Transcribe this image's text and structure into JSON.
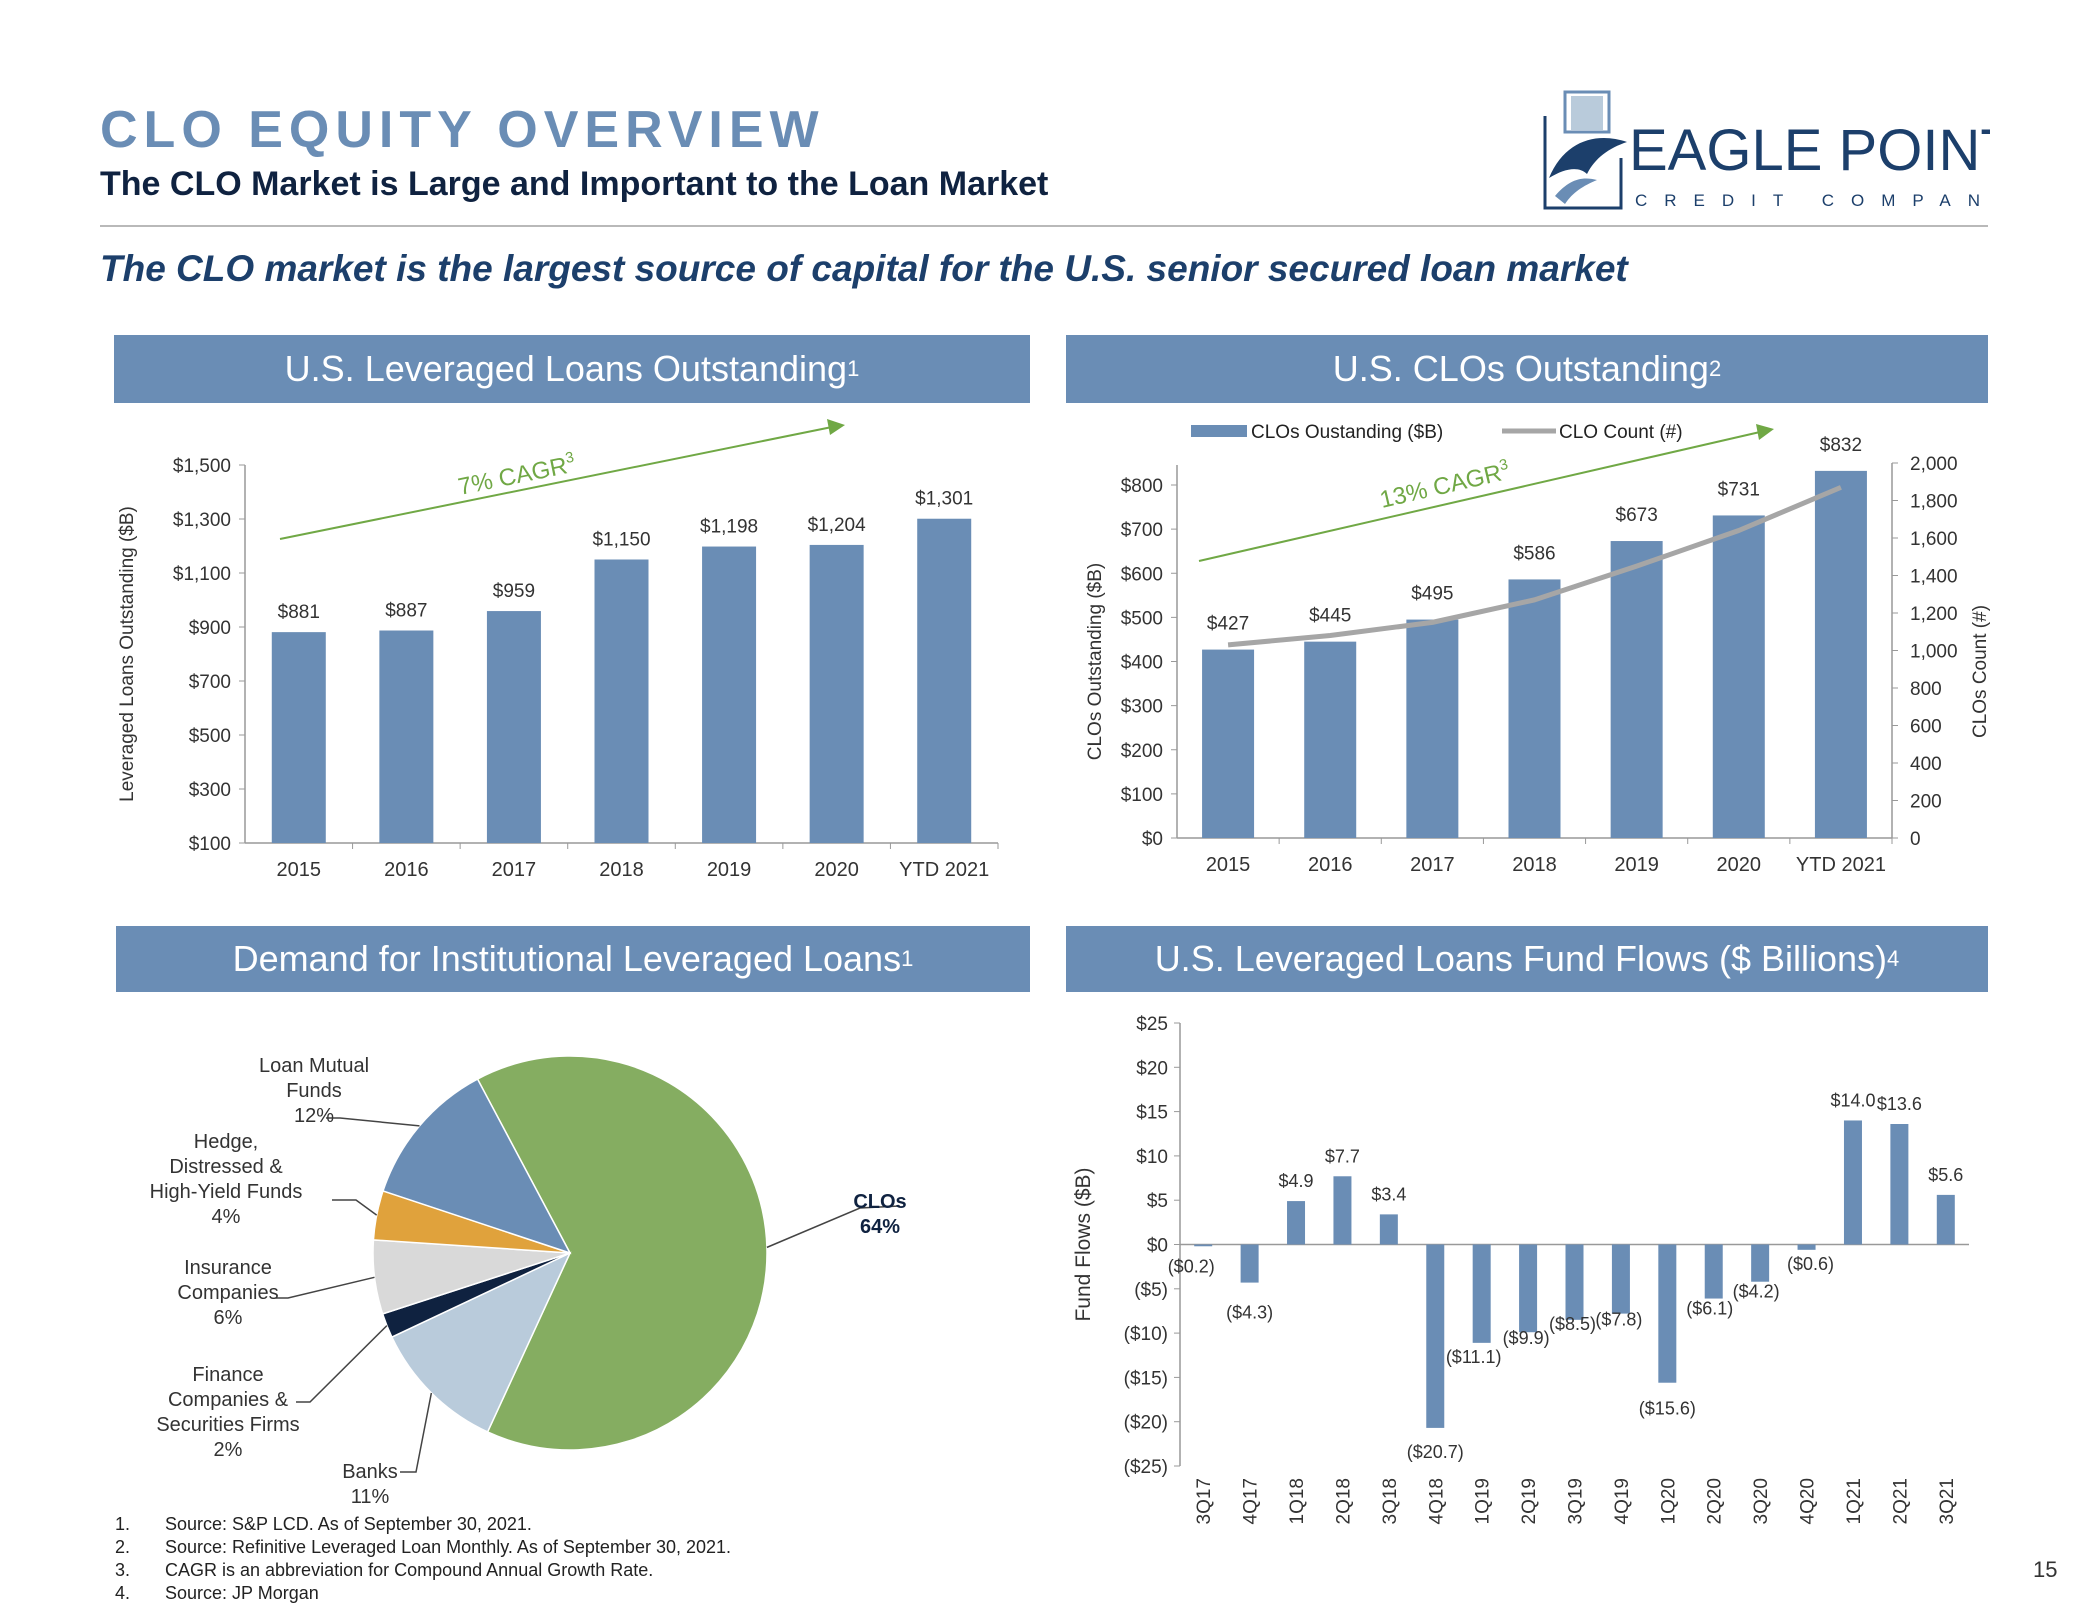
{
  "header": {
    "title": "CLO EQUITY OVERVIEW",
    "subtitle": "The CLO Market is Large and Important to the Loan Market",
    "tagline": "The CLO market is the largest source of capital for the U.S. senior secured loan market"
  },
  "logo": {
    "name": "EAGLE POINT",
    "tagline": "CREDIT COMPANY",
    "icon": "eagle-logo-icon"
  },
  "colors": {
    "header_bar": "#6a8db5",
    "bar": "#6a8db5",
    "cagr": "#70a845",
    "count_line": "#a6a6a6",
    "navy": "#0f2240"
  },
  "panels": {
    "loans_outstanding": {
      "title": "U.S. Leveraged Loans Outstanding",
      "sup": "1"
    },
    "clos_outstanding": {
      "title": "U.S. CLOs Outstanding",
      "sup": "2"
    },
    "demand": {
      "title": "Demand for Institutional Leveraged Loans",
      "sup": "1"
    },
    "fund_flows": {
      "title": "U.S. Leveraged Loans Fund Flows ($ Billions)",
      "sup": "4"
    }
  },
  "chart_data": [
    {
      "type": "bar",
      "categories": [
        "2015",
        "2016",
        "2017",
        "2018",
        "2019",
        "2020",
        "YTD 2021"
      ],
      "values": [
        881,
        887,
        959,
        1150,
        1198,
        1204,
        1301
      ],
      "labels": [
        "$881",
        "$887",
        "$959",
        "$1,150",
        "$1,198",
        "$1,204",
        "$1,301"
      ],
      "ylabel": "Leveraged Loans Outstanding ($B)",
      "ylim": [
        100,
        1500
      ],
      "yticks": [
        100,
        300,
        500,
        700,
        900,
        1100,
        1300,
        1500
      ],
      "ytick_labels": [
        "$100",
        "$300",
        "$500",
        "$700",
        "$900",
        "$1,100",
        "$1,300",
        "$1,500"
      ],
      "annotation": {
        "text": "7% CAGR",
        "sup": "3"
      }
    },
    {
      "type": "bar",
      "categories": [
        "2015",
        "2016",
        "2017",
        "2018",
        "2019",
        "2020",
        "YTD 2021"
      ],
      "series": [
        {
          "name": "CLOs Oustanding ($B)",
          "values": [
            427,
            445,
            495,
            586,
            673,
            731,
            832
          ],
          "labels": [
            "$427",
            "$445",
            "$495",
            "$586",
            "$673",
            "$731",
            "$832"
          ]
        },
        {
          "name": "CLO Count (#)",
          "type": "line",
          "axis": "right",
          "values": [
            1030,
            1080,
            1150,
            1270,
            1450,
            1640,
            1870
          ]
        }
      ],
      "ylabel": "CLOs Outstanding ($B)",
      "ylim": [
        0,
        800
      ],
      "yticks": [
        0,
        100,
        200,
        300,
        400,
        500,
        600,
        700,
        800
      ],
      "ytick_labels": [
        "$0",
        "$100",
        "$200",
        "$300",
        "$400",
        "$500",
        "$600",
        "$700",
        "$800"
      ],
      "y2label": "CLOs Count (#)",
      "y2lim": [
        0,
        2000
      ],
      "y2ticks": [
        0,
        200,
        400,
        600,
        800,
        1000,
        1200,
        1400,
        1600,
        1800,
        2000
      ],
      "y2tick_labels": [
        "0",
        "200",
        "400",
        "600",
        "800",
        "1,000",
        "1,200",
        "1,400",
        "1,600",
        "1,800",
        "2,000"
      ],
      "annotation": {
        "text": "13% CAGR",
        "sup": "3"
      }
    },
    {
      "type": "pie",
      "slices": [
        {
          "label": "CLOs",
          "value": 64,
          "pct": "64%",
          "color": "#85ad61"
        },
        {
          "label": "Banks",
          "value": 11,
          "pct": "11%",
          "color": "#b9cbdb"
        },
        {
          "label": "Finance Companies & Securities Firms",
          "value": 2,
          "pct": "2%",
          "color": "#0f2240"
        },
        {
          "label": "Insurance Companies",
          "value": 6,
          "pct": "6%",
          "color": "#d9d9d9"
        },
        {
          "label": "Hedge, Distressed & High-Yield Funds",
          "value": 4,
          "pct": "4%",
          "color": "#e0a23c"
        },
        {
          "label": "Loan Mutual Funds",
          "value": 12,
          "pct": "12%",
          "color": "#6a8db5"
        }
      ]
    },
    {
      "type": "bar",
      "categories": [
        "3Q17",
        "4Q17",
        "1Q18",
        "2Q18",
        "3Q18",
        "4Q18",
        "1Q19",
        "2Q19",
        "3Q19",
        "4Q19",
        "1Q20",
        "2Q20",
        "3Q20",
        "4Q20",
        "1Q21",
        "2Q21",
        "3Q21"
      ],
      "values": [
        -0.2,
        -4.3,
        4.9,
        7.7,
        3.4,
        -20.7,
        -11.1,
        -9.9,
        -8.5,
        -7.8,
        -15.6,
        -6.1,
        -4.2,
        -0.6,
        14.0,
        13.6,
        5.6
      ],
      "labels": [
        "($0.2)",
        "($4.3)",
        "$4.9",
        "$7.7",
        "$3.4",
        "($20.7)",
        "($11.1)",
        "($9.9)",
        "($8.5)",
        "($7.8)",
        "($15.6)",
        "($6.1)",
        "($4.2)",
        "($0.6)",
        "$14.0",
        "$13.6",
        "$5.6"
      ],
      "ylabel": "Fund Flows ($B)",
      "ylim": [
        -25,
        25
      ],
      "yticks": [
        -25,
        -20,
        -15,
        -10,
        -5,
        0,
        5,
        10,
        15,
        20,
        25
      ],
      "ytick_labels": [
        "($25)",
        "($20)",
        "($15)",
        "($10)",
        "($5)",
        "$0",
        "$5",
        "$10",
        "$15",
        "$20",
        "$25"
      ]
    }
  ],
  "footnotes": [
    {
      "n": "1.",
      "text": "Source: S&P LCD. As of September 30, 2021."
    },
    {
      "n": "2.",
      "text": "Source: Refinitive Leveraged Loan Monthly. As of September 30, 2021."
    },
    {
      "n": "3.",
      "text": "CAGR is an abbreviation for Compound Annual Growth Rate."
    },
    {
      "n": "4.",
      "text": "Source: JP Morgan"
    }
  ],
  "page_number": "15"
}
